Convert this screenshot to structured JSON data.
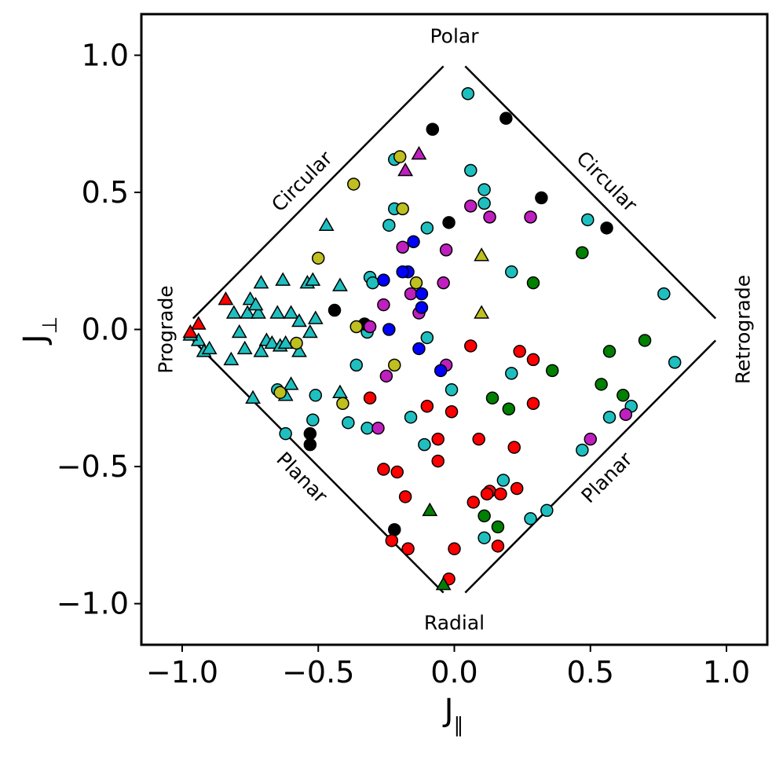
{
  "chart_data": {
    "type": "scatter",
    "xlabel": "J",
    "xlabel_subscript": "∥",
    "ylabel": "J",
    "ylabel_subscript": "⊥",
    "xlim": [
      -1.15,
      1.15
    ],
    "ylim": [
      -1.15,
      1.15
    ],
    "xticks": [
      -1.0,
      -0.5,
      0.0,
      0.5,
      1.0
    ],
    "yticks": [
      -1.0,
      -0.5,
      0.0,
      0.5,
      1.0
    ],
    "xtick_labels": [
      "−1.0",
      "−0.5",
      "0.0",
      "0.5",
      "1.0"
    ],
    "ytick_labels": [
      "−1.0",
      "−0.5",
      "0.0",
      "0.5",
      "1.0"
    ],
    "grid": false,
    "region_labels": {
      "polar": "Polar",
      "radial": "Radial",
      "prograde": "Prograde",
      "retrograde": "Retrograde",
      "circular_left": "Circular",
      "circular_right": "Circular",
      "planar_left": "Planar",
      "planar_right": "Planar"
    },
    "colors": {
      "cyan": "#1fbfbf",
      "black": "#000000",
      "yellow": "#bfbf1f",
      "magenta": "#bf1fbf",
      "blue": "#0000ff",
      "red": "#ff0000",
      "green": "#008000"
    },
    "series": [
      {
        "color": "cyan",
        "marker": "circle",
        "points": [
          [
            0.05,
            0.86
          ],
          [
            0.06,
            0.58
          ],
          [
            0.11,
            0.51
          ],
          [
            0.11,
            0.46
          ],
          [
            -0.22,
            0.62
          ],
          [
            -0.22,
            0.44
          ],
          [
            -0.24,
            0.38
          ],
          [
            -0.1,
            0.37
          ],
          [
            -0.31,
            0.19
          ],
          [
            -0.3,
            0.17
          ],
          [
            0.21,
            0.21
          ],
          [
            0.77,
            0.13
          ],
          [
            0.81,
            -0.12
          ],
          [
            0.49,
            0.4
          ],
          [
            -0.36,
            -0.13
          ],
          [
            -0.01,
            -0.22
          ],
          [
            -0.32,
            -0.01
          ],
          [
            -0.51,
            -0.24
          ],
          [
            -0.52,
            -0.33
          ],
          [
            -0.62,
            -0.38
          ],
          [
            -0.39,
            -0.34
          ],
          [
            -0.32,
            -0.36
          ],
          [
            -0.16,
            -0.32
          ],
          [
            -0.1,
            -0.03
          ],
          [
            -0.11,
            -0.42
          ],
          [
            0.21,
            -0.16
          ],
          [
            0.57,
            -0.32
          ],
          [
            0.65,
            -0.28
          ],
          [
            0.47,
            -0.44
          ],
          [
            0.18,
            -0.55
          ],
          [
            0.28,
            -0.69
          ],
          [
            0.34,
            -0.66
          ],
          [
            0.11,
            -0.76
          ],
          [
            -0.65,
            -0.22
          ]
        ]
      },
      {
        "color": "cyan",
        "marker": "triangle",
        "points": [
          [
            -0.47,
            0.38
          ],
          [
            -0.71,
            0.17
          ],
          [
            -0.63,
            0.18
          ],
          [
            -0.54,
            0.17
          ],
          [
            -0.52,
            0.18
          ],
          [
            -0.42,
            0.16
          ],
          [
            -0.75,
            0.11
          ],
          [
            -0.81,
            0.06
          ],
          [
            -0.79,
            -0.01
          ],
          [
            -0.76,
            0.06
          ],
          [
            -0.72,
            0.06
          ],
          [
            -0.73,
            0.09
          ],
          [
            -0.65,
            0.06
          ],
          [
            -0.6,
            0.06
          ],
          [
            -0.57,
            0.03
          ],
          [
            -0.51,
            0.04
          ],
          [
            -0.53,
            -0.01
          ],
          [
            -0.69,
            -0.04
          ],
          [
            -0.67,
            -0.05
          ],
          [
            -0.64,
            -0.06
          ],
          [
            -0.62,
            -0.05
          ],
          [
            -0.57,
            -0.08
          ],
          [
            -0.77,
            -0.07
          ],
          [
            -0.71,
            -0.08
          ],
          [
            -0.82,
            -0.11
          ],
          [
            -0.94,
            -0.04
          ],
          [
            -0.92,
            -0.08
          ],
          [
            -0.9,
            -0.07
          ],
          [
            -0.97,
            -0.02
          ],
          [
            -0.74,
            -0.25
          ],
          [
            -0.62,
            -0.24
          ],
          [
            -0.6,
            -0.2
          ],
          [
            -0.42,
            -0.23
          ]
        ]
      },
      {
        "color": "black",
        "marker": "circle",
        "points": [
          [
            -0.08,
            0.73
          ],
          [
            0.19,
            0.77
          ],
          [
            0.32,
            0.48
          ],
          [
            0.56,
            0.37
          ],
          [
            -0.02,
            0.39
          ],
          [
            -0.44,
            0.07
          ],
          [
            -0.33,
            0.02
          ],
          [
            -0.53,
            -0.38
          ],
          [
            -0.53,
            -0.42
          ],
          [
            -0.22,
            -0.73
          ]
        ]
      },
      {
        "color": "yellow",
        "marker": "circle",
        "points": [
          [
            -0.2,
            0.63
          ],
          [
            -0.37,
            0.53
          ],
          [
            -0.19,
            0.44
          ],
          [
            -0.5,
            0.26
          ],
          [
            -0.14,
            0.17
          ],
          [
            -0.36,
            0.01
          ],
          [
            -0.58,
            -0.05
          ],
          [
            -0.22,
            -0.13
          ],
          [
            -0.41,
            -0.27
          ],
          [
            -0.64,
            -0.23
          ]
        ]
      },
      {
        "color": "yellow",
        "marker": "triangle",
        "points": [
          [
            0.1,
            0.27
          ],
          [
            0.1,
            0.06
          ]
        ]
      },
      {
        "color": "magenta",
        "marker": "circle",
        "points": [
          [
            0.06,
            0.45
          ],
          [
            0.13,
            0.41
          ],
          [
            0.28,
            0.41
          ],
          [
            -0.19,
            0.3
          ],
          [
            -0.03,
            0.29
          ],
          [
            -0.16,
            0.13
          ],
          [
            -0.26,
            0.09
          ],
          [
            -0.13,
            0.06
          ],
          [
            -0.04,
            0.17
          ],
          [
            -0.31,
            0.01
          ],
          [
            -0.03,
            -0.13
          ],
          [
            -0.25,
            -0.17
          ],
          [
            -0.28,
            -0.36
          ],
          [
            0.5,
            -0.4
          ],
          [
            0.63,
            -0.31
          ]
        ]
      },
      {
        "color": "magenta",
        "marker": "triangle",
        "points": [
          [
            -0.13,
            0.64
          ],
          [
            -0.18,
            0.58
          ]
        ]
      },
      {
        "color": "blue",
        "marker": "circle",
        "points": [
          [
            -0.15,
            0.32
          ],
          [
            -0.26,
            0.18
          ],
          [
            -0.17,
            0.21
          ],
          [
            -0.19,
            0.21
          ],
          [
            -0.12,
            0.13
          ],
          [
            -0.12,
            0.08
          ],
          [
            -0.24,
            0.0
          ],
          [
            -0.13,
            -0.07
          ],
          [
            -0.05,
            -0.15
          ]
        ]
      },
      {
        "color": "red",
        "marker": "circle",
        "points": [
          [
            0.06,
            -0.06
          ],
          [
            0.24,
            -0.08
          ],
          [
            0.29,
            -0.11
          ],
          [
            -0.31,
            -0.25
          ],
          [
            -0.1,
            -0.28
          ],
          [
            -0.01,
            -0.3
          ],
          [
            0.29,
            -0.27
          ],
          [
            0.09,
            -0.4
          ],
          [
            0.22,
            -0.43
          ],
          [
            -0.06,
            -0.4
          ],
          [
            -0.06,
            -0.48
          ],
          [
            -0.26,
            -0.51
          ],
          [
            -0.21,
            -0.52
          ],
          [
            -0.18,
            -0.61
          ],
          [
            0.07,
            -0.63
          ],
          [
            0.13,
            -0.59
          ],
          [
            0.12,
            -0.6
          ],
          [
            0.17,
            -0.6
          ],
          [
            0.23,
            -0.58
          ],
          [
            0.16,
            -0.79
          ],
          [
            -0.23,
            -0.77
          ],
          [
            -0.17,
            -0.8
          ],
          [
            0.0,
            -0.8
          ],
          [
            -0.02,
            -0.91
          ]
        ]
      },
      {
        "color": "red",
        "marker": "triangle",
        "points": [
          [
            -0.84,
            0.11
          ],
          [
            -0.94,
            0.02
          ],
          [
            -0.97,
            -0.01
          ]
        ]
      },
      {
        "color": "green",
        "marker": "circle",
        "points": [
          [
            0.47,
            0.28
          ],
          [
            0.29,
            0.17
          ],
          [
            0.57,
            -0.08
          ],
          [
            0.7,
            -0.04
          ],
          [
            0.36,
            -0.15
          ],
          [
            0.54,
            -0.2
          ],
          [
            0.62,
            -0.24
          ],
          [
            0.14,
            -0.25
          ],
          [
            0.2,
            -0.29
          ],
          [
            0.11,
            -0.68
          ],
          [
            0.16,
            -0.72
          ]
        ]
      },
      {
        "color": "green",
        "marker": "triangle",
        "points": [
          [
            -0.09,
            -0.66
          ],
          [
            -0.04,
            -0.93
          ]
        ]
      }
    ]
  }
}
